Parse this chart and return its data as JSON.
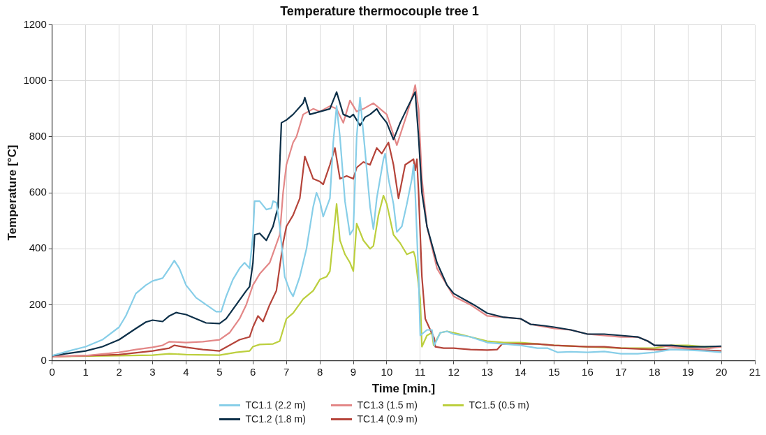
{
  "chart_data": {
    "type": "line",
    "title": "Temperature thermocouple tree 1",
    "xlabel": "Time [min.]",
    "ylabel": "Temperature [°C]",
    "xlim": [
      0,
      21
    ],
    "xticks": [
      0,
      1,
      2,
      3,
      4,
      5,
      6,
      7,
      8,
      9,
      10,
      11,
      12,
      13,
      14,
      15,
      16,
      17,
      18,
      19,
      20,
      21
    ],
    "ylim": [
      0,
      1200
    ],
    "yticks": [
      0,
      200,
      400,
      600,
      800,
      1000,
      1200
    ],
    "grid": true,
    "legend": "bottom",
    "series": [
      {
        "name": "TC1.1 (2.2 m)",
        "color": "#87cee8",
        "x": [
          0,
          0.5,
          1,
          1.5,
          2,
          2.2,
          2.5,
          2.8,
          3,
          3.3,
          3.5,
          3.65,
          3.8,
          4,
          4.3,
          4.6,
          4.9,
          5.05,
          5.2,
          5.4,
          5.6,
          5.75,
          5.9,
          6,
          6.05,
          6.2,
          6.4,
          6.55,
          6.6,
          6.7,
          6.8,
          6.95,
          7.1,
          7.2,
          7.4,
          7.6,
          7.8,
          7.9,
          8,
          8.1,
          8.3,
          8.4,
          8.5,
          8.6,
          8.75,
          8.9,
          9,
          9.1,
          9.2,
          9.35,
          9.5,
          9.6,
          9.7,
          9.8,
          9.9,
          9.95,
          10.05,
          10.2,
          10.3,
          10.45,
          10.6,
          10.75,
          10.8,
          10.85,
          10.95,
          11,
          11.2,
          11.35,
          11.42,
          11.6,
          11.8,
          12,
          12.5,
          13,
          13.5,
          14,
          14.5,
          14.8,
          15.1,
          15.5,
          16,
          16.5,
          17,
          17.5,
          18,
          18.5,
          19,
          19.5,
          20
        ],
        "values": [
          18,
          35,
          50,
          75,
          120,
          160,
          240,
          270,
          285,
          295,
          330,
          358,
          330,
          270,
          225,
          200,
          175,
          175,
          230,
          290,
          330,
          350,
          330,
          450,
          570,
          570,
          540,
          545,
          570,
          565,
          480,
          300,
          250,
          230,
          300,
          400,
          550,
          600,
          570,
          515,
          580,
          780,
          910,
          800,
          570,
          450,
          470,
          800,
          940,
          750,
          550,
          470,
          580,
          650,
          720,
          740,
          650,
          560,
          460,
          480,
          560,
          650,
          700,
          600,
          300,
          90,
          110,
          110,
          55,
          100,
          105,
          95,
          85,
          65,
          60,
          55,
          45,
          45,
          30,
          32,
          30,
          33,
          25,
          25,
          30,
          40,
          38,
          35,
          30
        ]
      },
      {
        "name": "TC1.2 (1.8 m)",
        "color": "#0d3049",
        "x": [
          0,
          1,
          1.5,
          2,
          2.5,
          2.8,
          3,
          3.3,
          3.5,
          3.7,
          4,
          4.3,
          4.6,
          5,
          5.2,
          5.5,
          5.8,
          5.9,
          6,
          6.05,
          6.2,
          6.4,
          6.6,
          6.75,
          6.85,
          7,
          7.2,
          7.5,
          7.55,
          7.7,
          8,
          8.3,
          8.5,
          8.7,
          8.9,
          9,
          9.2,
          9.35,
          9.5,
          9.7,
          9.8,
          10,
          10.2,
          10.4,
          10.6,
          10.85,
          10.95,
          11.05,
          11.2,
          11.5,
          11.8,
          12,
          12.3,
          12.6,
          13,
          13.5,
          14,
          14.3,
          14.7,
          15,
          15.5,
          16,
          16.5,
          17,
          17.5,
          17.8,
          18,
          18.5,
          19,
          19.5,
          20
        ],
        "values": [
          18,
          35,
          50,
          75,
          115,
          138,
          145,
          140,
          160,
          172,
          165,
          150,
          135,
          133,
          150,
          200,
          250,
          265,
          350,
          450,
          455,
          430,
          480,
          550,
          850,
          860,
          880,
          920,
          940,
          880,
          890,
          900,
          960,
          880,
          870,
          880,
          840,
          870,
          880,
          900,
          880,
          850,
          790,
          850,
          900,
          960,
          800,
          600,
          480,
          350,
          270,
          240,
          220,
          200,
          170,
          155,
          150,
          130,
          125,
          120,
          110,
          95,
          95,
          90,
          85,
          70,
          55,
          55,
          50,
          50,
          52
        ]
      },
      {
        "name": "TC1.3 (1.5 m)",
        "color": "#e38787",
        "x": [
          0,
          1,
          2,
          2.5,
          3,
          3.3,
          3.5,
          4,
          4.5,
          5,
          5.3,
          5.6,
          5.8,
          6,
          6.2,
          6.5,
          6.8,
          6.9,
          7,
          7.2,
          7.3,
          7.5,
          7.8,
          8,
          8.3,
          8.5,
          8.7,
          8.9,
          9.1,
          9.3,
          9.6,
          9.8,
          10,
          10.3,
          10.6,
          10.8,
          10.85,
          10.95,
          11.05,
          11.2,
          11.5,
          12,
          12.5,
          13,
          13.5,
          14,
          14.3,
          15,
          15.5,
          16,
          17,
          17.5,
          17.8,
          18,
          19,
          19.5,
          20
        ],
        "values": [
          15,
          18,
          30,
          40,
          48,
          55,
          68,
          65,
          68,
          75,
          100,
          150,
          200,
          270,
          310,
          350,
          450,
          600,
          700,
          780,
          800,
          880,
          900,
          890,
          910,
          900,
          850,
          930,
          890,
          900,
          920,
          900,
          880,
          770,
          880,
          960,
          985,
          900,
          650,
          480,
          330,
          230,
          200,
          160,
          155,
          150,
          130,
          115,
          110,
          95,
          85,
          85,
          70,
          55,
          45,
          42,
          50
        ]
      },
      {
        "name": "TC1.4 (0.9 m)",
        "color": "#b5443a",
        "x": [
          0,
          1,
          2,
          3,
          3.5,
          3.65,
          4,
          4.5,
          5,
          5.3,
          5.6,
          5.9,
          6,
          6.15,
          6.3,
          6.5,
          6.7,
          6.9,
          7,
          7.2,
          7.4,
          7.55,
          7.8,
          8,
          8.1,
          8.3,
          8.45,
          8.6,
          8.8,
          9,
          9.1,
          9.3,
          9.5,
          9.7,
          9.85,
          10.05,
          10.2,
          10.35,
          10.55,
          10.8,
          10.85,
          10.9,
          10.95,
          11.05,
          11.15,
          11.3,
          11.42,
          11.45,
          11.7,
          12,
          12.5,
          13,
          13.3,
          13.45,
          14,
          14.5,
          15,
          16,
          16.5,
          17,
          18,
          19,
          20
        ],
        "values": [
          15,
          18,
          22,
          35,
          45,
          55,
          48,
          40,
          35,
          55,
          75,
          85,
          120,
          160,
          140,
          200,
          250,
          420,
          480,
          520,
          580,
          730,
          650,
          640,
          630,
          700,
          760,
          650,
          660,
          650,
          690,
          710,
          700,
          760,
          740,
          780,
          700,
          580,
          700,
          720,
          680,
          720,
          600,
          300,
          150,
          110,
          80,
          50,
          45,
          45,
          40,
          38,
          40,
          60,
          60,
          60,
          55,
          50,
          50,
          45,
          40,
          40,
          35
        ]
      },
      {
        "name": "TC1.5 (0.5 m)",
        "color": "#bccf3e",
        "x": [
          0,
          2,
          3,
          3.5,
          4,
          5,
          5.5,
          5.9,
          6,
          6.2,
          6.6,
          6.8,
          7,
          7.2,
          7.5,
          7.8,
          8,
          8.2,
          8.3,
          8.5,
          8.6,
          8.75,
          8.9,
          9,
          9.1,
          9.3,
          9.5,
          9.6,
          9.75,
          9.9,
          10,
          10.2,
          10.4,
          10.6,
          10.8,
          10.85,
          11,
          11.05,
          11.2,
          11.35,
          11.4,
          11.6,
          11.8,
          12,
          12.5,
          13,
          13.5,
          14,
          15,
          16,
          17,
          18,
          18.5,
          19,
          19.5,
          20
        ],
        "values": [
          15,
          18,
          20,
          25,
          22,
          20,
          30,
          35,
          50,
          58,
          60,
          70,
          150,
          170,
          220,
          250,
          290,
          300,
          320,
          560,
          430,
          380,
          350,
          320,
          490,
          430,
          400,
          410,
          520,
          590,
          560,
          450,
          420,
          380,
          390,
          370,
          220,
          50,
          90,
          100,
          55,
          100,
          105,
          100,
          85,
          70,
          65,
          65,
          55,
          50,
          45,
          45,
          55,
          55,
          50,
          50
        ]
      }
    ]
  }
}
